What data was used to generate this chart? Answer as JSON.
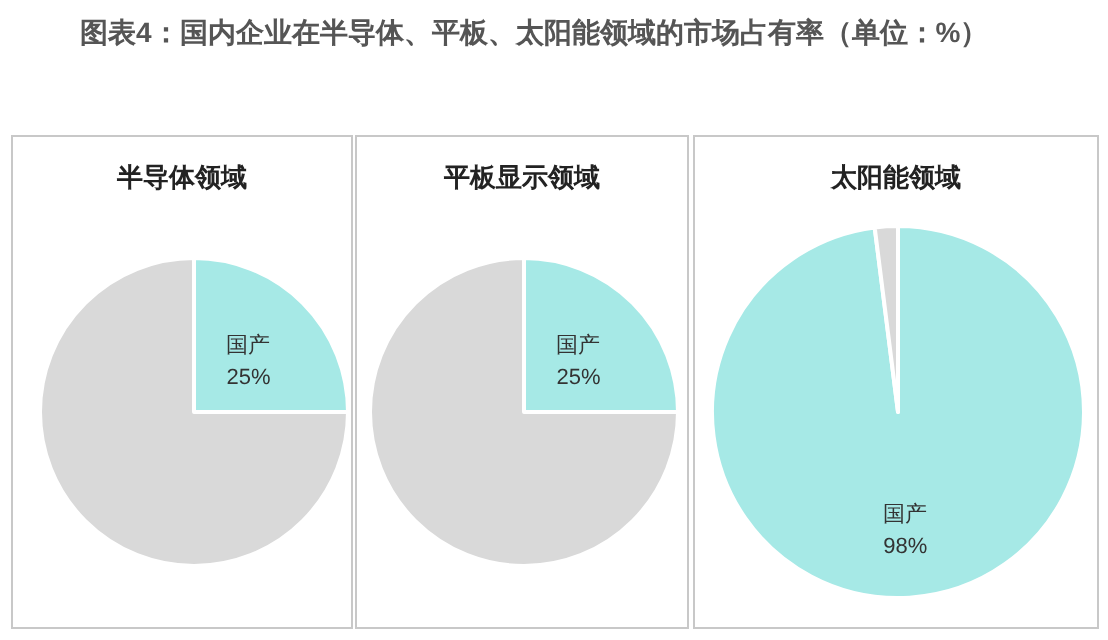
{
  "chart_data": [
    {
      "type": "pie",
      "title": "半导体领域",
      "annotations": [
        "图表4：国内企业在半导体、平板、太阳能领域的市场占有率（单位：%）"
      ],
      "categories": [
        "国产",
        null
      ],
      "values": [
        25,
        75
      ],
      "colors": [
        "#a6e9e6",
        "#d9d9d9"
      ],
      "value_labels": [
        "25%",
        null
      ]
    },
    {
      "type": "pie",
      "title": "平板显示领域",
      "categories": [
        "国产",
        null
      ],
      "values": [
        25,
        75
      ],
      "colors": [
        "#a6e9e6",
        "#d9d9d9"
      ],
      "value_labels": [
        "25%",
        null
      ]
    },
    {
      "type": "pie",
      "title": "太阳能领域",
      "categories": [
        "国产",
        null
      ],
      "values": [
        98,
        2
      ],
      "colors": [
        "#a6e9e6",
        "#d9d9d9"
      ],
      "value_labels": [
        "98%",
        null
      ]
    }
  ]
}
